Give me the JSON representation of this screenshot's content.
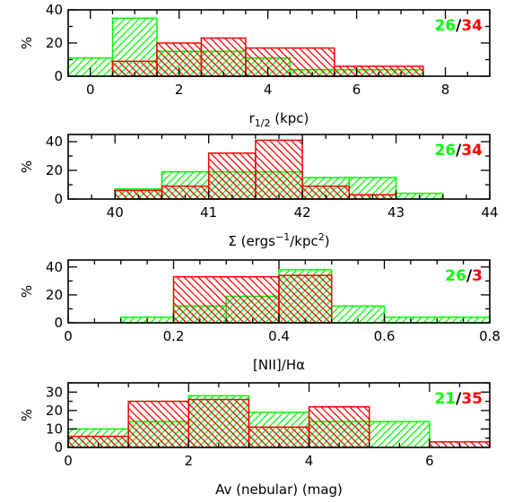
{
  "colors": {
    "green": "#00ff00",
    "red": "#ff0000",
    "axis": "#000000"
  },
  "chart_data": [
    {
      "type": "bar",
      "xlabel": "r1/2 (kpc)",
      "ylabel": "%",
      "xlim": [
        -0.5,
        9
      ],
      "ylim": [
        0,
        40
      ],
      "xticks": [
        0,
        2,
        4,
        6,
        8
      ],
      "yticks": [
        0,
        20,
        40
      ],
      "counts": {
        "green": "26",
        "sep": "/",
        "red": "34"
      },
      "series": [
        {
          "color": "green",
          "bins": [
            [
              -0.5,
              0.5,
              11
            ],
            [
              0.5,
              1.5,
              35
            ],
            [
              1.5,
              3.5,
              15
            ],
            [
              3.5,
              4.5,
              11
            ],
            [
              4.5,
              5.5,
              4
            ],
            [
              5.5,
              7.5,
              4
            ]
          ]
        },
        {
          "color": "red",
          "bins": [
            [
              0.5,
              1.5,
              9
            ],
            [
              1.5,
              2.5,
              20
            ],
            [
              2.5,
              3.5,
              23
            ],
            [
              3.5,
              5.5,
              17
            ],
            [
              5.5,
              7.5,
              6
            ]
          ]
        }
      ]
    },
    {
      "type": "bar",
      "xlabel": "Σ (ergs-1/kpc2)",
      "ylabel": "%",
      "xlim": [
        39.5,
        44
      ],
      "ylim": [
        0,
        45
      ],
      "xticks": [
        40,
        41,
        42,
        43,
        44
      ],
      "yticks": [
        0,
        20,
        40
      ],
      "counts": {
        "green": "26",
        "sep": "/",
        "red": "34"
      },
      "series": [
        {
          "color": "green",
          "bins": [
            [
              40.0,
              40.5,
              7
            ],
            [
              40.5,
              41.0,
              19
            ],
            [
              41.0,
              42.0,
              19
            ],
            [
              42.0,
              42.5,
              15
            ],
            [
              42.5,
              43.0,
              15
            ],
            [
              43.0,
              43.5,
              4
            ]
          ]
        },
        {
          "color": "red",
          "bins": [
            [
              40.0,
              40.5,
              6
            ],
            [
              40.5,
              41.0,
              9
            ],
            [
              41.0,
              41.5,
              32
            ],
            [
              41.5,
              42.0,
              41
            ],
            [
              42.0,
              42.5,
              9
            ],
            [
              42.5,
              43.0,
              3
            ]
          ]
        }
      ]
    },
    {
      "type": "bar",
      "xlabel": "[NII]/Hα",
      "ylabel": "%",
      "xlim": [
        0,
        0.8
      ],
      "ylim": [
        0,
        45
      ],
      "xticks": [
        0,
        0.2,
        0.4,
        0.6,
        0.8
      ],
      "yticks": [
        0,
        20,
        40
      ],
      "counts": {
        "green": "26",
        "sep": "/",
        "red": "3"
      },
      "series": [
        {
          "color": "green",
          "bins": [
            [
              0.1,
              0.2,
              4
            ],
            [
              0.2,
              0.3,
              12
            ],
            [
              0.3,
              0.4,
              19
            ],
            [
              0.4,
              0.5,
              38
            ],
            [
              0.5,
              0.6,
              12
            ],
            [
              0.6,
              0.8,
              4
            ]
          ]
        },
        {
          "color": "red",
          "bins": [
            [
              0.2,
              0.4,
              33
            ],
            [
              0.4,
              0.5,
              34
            ]
          ]
        }
      ]
    },
    {
      "type": "bar",
      "xlabel": "Av (nebular) (mag)",
      "ylabel": "%",
      "xlim": [
        0,
        7
      ],
      "ylim": [
        0,
        35
      ],
      "xticks": [
        0,
        2,
        4,
        6
      ],
      "yticks": [
        0,
        10,
        20,
        30
      ],
      "counts": {
        "green": "21",
        "sep": "/",
        "red": "35"
      },
      "series": [
        {
          "color": "green",
          "bins": [
            [
              0,
              1,
              10
            ],
            [
              1,
              2,
              14
            ],
            [
              2,
              3,
              28
            ],
            [
              3,
              4,
              19
            ],
            [
              4,
              5,
              14
            ],
            [
              5,
              6,
              14
            ]
          ]
        },
        {
          "color": "red",
          "bins": [
            [
              0,
              1,
              6
            ],
            [
              1,
              2,
              25
            ],
            [
              2,
              3,
              26
            ],
            [
              3,
              4,
              11
            ],
            [
              4,
              5,
              22
            ],
            [
              6,
              7,
              3
            ]
          ]
        }
      ]
    }
  ]
}
